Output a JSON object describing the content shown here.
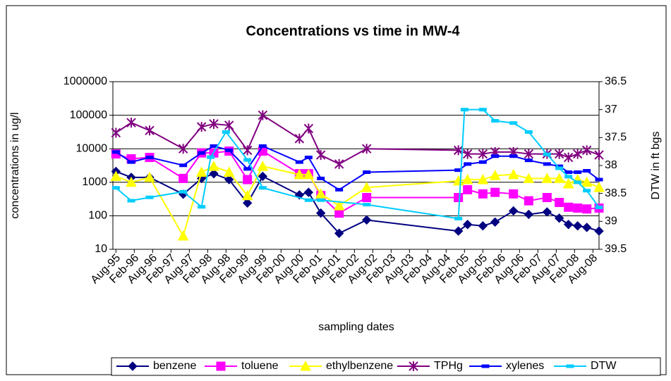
{
  "chart_data": {
    "type": "line",
    "title": "Concentrations vs time in MW-4",
    "xlabel": "sampling dates",
    "ylabel": "concentrations in ug/l",
    "y2label": "DTW in ft bgs",
    "yscale": "log",
    "y2_reversed": true,
    "xlim": [
      "Jul-95",
      "Oct-08"
    ],
    "xticks": [
      "Aug-95",
      "Feb-96",
      "Aug-96",
      "Feb-97",
      "Aug-97",
      "Feb-98",
      "Aug-98",
      "Feb-99",
      "Aug-99",
      "Feb-00",
      "Aug-00",
      "Feb-01",
      "Aug-01",
      "Feb-02",
      "Aug-02",
      "Feb-03",
      "Aug-03",
      "Feb-04",
      "Aug-04",
      "Feb-05",
      "Aug-05",
      "Feb-06",
      "Aug-06",
      "Feb-07",
      "Aug-07",
      "Feb-08",
      "Aug-08"
    ],
    "ylim": [
      10,
      1000000
    ],
    "yticks": [
      10,
      100,
      1000,
      10000,
      100000,
      1000000
    ],
    "y2lim": [
      36.5,
      39.5
    ],
    "y2ticks": [
      36.5,
      37,
      37.5,
      38,
      38.5,
      39,
      39.5
    ],
    "legend": "bottom",
    "x": [
      "Aug-95",
      "Jan-96",
      "Jul-96",
      "Jun-97",
      "Dec-97",
      "Apr-98",
      "Sep-98",
      "Mar-99",
      "Aug-99",
      "Aug-00",
      "Nov-00",
      "Mar-01",
      "Sep-01",
      "Jun-02",
      "Dec-04",
      "Mar-05",
      "Aug-05",
      "Dec-05",
      "Jun-06",
      "Nov-06",
      "May-07",
      "Sep-07",
      "Dec-07",
      "Mar-08",
      "Jun-08",
      "Oct-08"
    ],
    "series": [
      {
        "name": "benzene",
        "color": "#000080",
        "marker": "diamond",
        "values": [
          2100,
          1400,
          1400,
          440,
          1300,
          1800,
          1200,
          240,
          1500,
          420,
          500,
          120,
          30,
          75,
          35,
          55,
          50,
          65,
          140,
          110,
          130,
          85,
          55,
          50,
          45,
          35
        ]
      },
      {
        "name": "toluene",
        "color": "#ff00ff",
        "marker": "square",
        "values": [
          7000,
          5000,
          5500,
          1300,
          7500,
          7500,
          8500,
          1200,
          8500,
          1800,
          1800,
          400,
          120,
          350,
          350,
          600,
          450,
          500,
          450,
          280,
          350,
          250,
          180,
          170,
          160,
          170
        ]
      },
      {
        "name": "ethylbenzene",
        "color": "#ffff00",
        "marker": "triangle",
        "values": [
          1500,
          1000,
          1400,
          25,
          2000,
          3000,
          2000,
          400,
          3000,
          1700,
          1700,
          450,
          200,
          700,
          1100,
          1200,
          1200,
          1600,
          1700,
          1300,
          1300,
          1300,
          900,
          1200,
          1000,
          700
        ]
      },
      {
        "name": "TPHg",
        "color": "#800080",
        "marker": "star",
        "values": [
          30000,
          60000,
          35000,
          10000,
          45000,
          55000,
          50000,
          9000,
          100000,
          20000,
          40000,
          6500,
          3500,
          10000,
          9000,
          7000,
          7000,
          8000,
          8000,
          7000,
          7000,
          7000,
          5500,
          7000,
          9000,
          6500
        ]
      },
      {
        "name": "xylenes",
        "color": "#0000ff",
        "marker": "dash",
        "values": [
          8000,
          4000,
          5500,
          3200,
          7500,
          12000,
          9000,
          2500,
          12000,
          4000,
          5500,
          1300,
          600,
          2000,
          2300,
          3500,
          4000,
          6000,
          6000,
          4500,
          3500,
          3000,
          2000,
          2000,
          2200,
          1200
        ]
      },
      {
        "name": "DTW",
        "color": "#00ccff",
        "marker": "dash",
        "axis": "y2",
        "x": [
          "Aug-95",
          "Jan-96",
          "Jul-96",
          "Jun-97",
          "Dec-97",
          "Mar-98",
          "Aug-98",
          "Mar-99",
          "Aug-99",
          "Nov-00",
          "Mar-01",
          "Jun-02",
          "Dec-04",
          "Feb-05",
          "Aug-05",
          "Dec-05",
          "Jun-06",
          "Nov-06",
          "May-07",
          "Sep-07",
          "Dec-07",
          "Mar-08",
          "Jun-08",
          "Oct-08"
        ],
        "values": [
          38.4,
          38.63,
          38.57,
          38.47,
          38.74,
          37.85,
          37.4,
          37.9,
          38.4,
          38.62,
          38.62,
          38.7,
          38.95,
          37.0,
          37.0,
          37.2,
          37.24,
          37.4,
          37.8,
          38.05,
          38.2,
          38.3,
          38.45,
          38.75
        ]
      }
    ]
  }
}
